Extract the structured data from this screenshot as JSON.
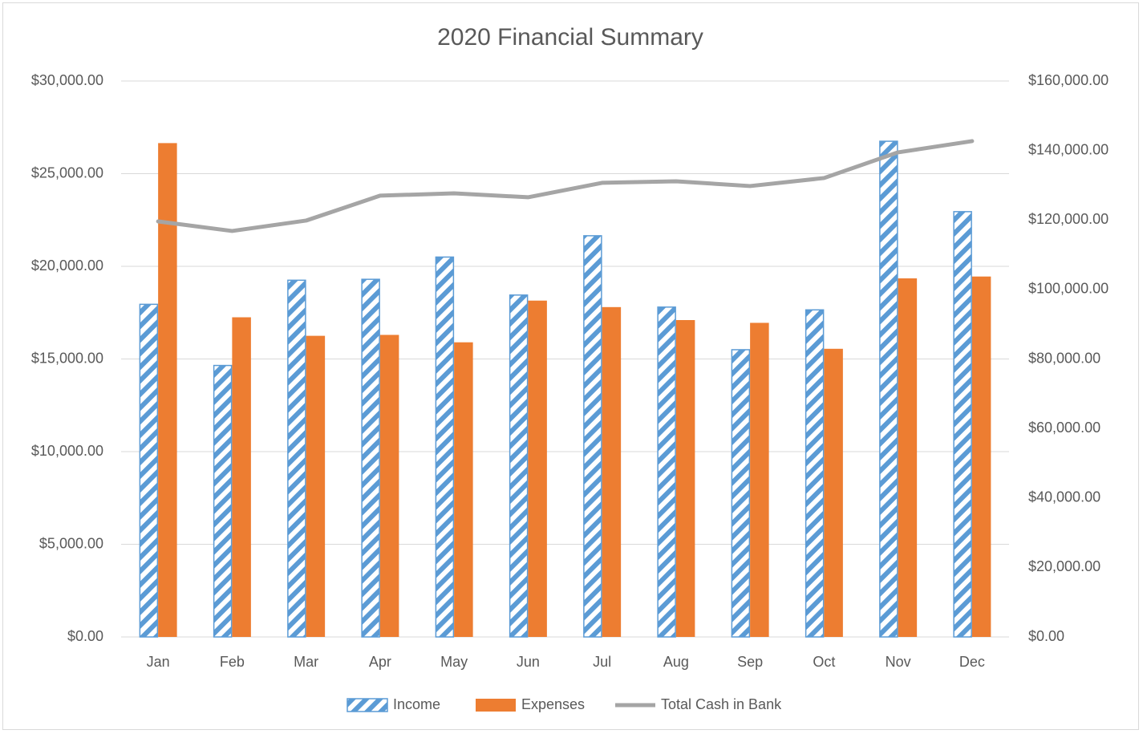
{
  "chart_data": {
    "type": "bar",
    "title": "2020 Financial Summary",
    "categories": [
      "Jan",
      "Feb",
      "Mar",
      "Apr",
      "May",
      "Jun",
      "Jul",
      "Aug",
      "Sep",
      "Oct",
      "Nov",
      "Dec"
    ],
    "series": [
      {
        "name": "Income",
        "type": "bar",
        "color": "#5b9bd5",
        "pattern": "diagonal-stripes",
        "values": [
          17950,
          14650,
          19250,
          19300,
          20500,
          18450,
          21650,
          17800,
          15500,
          17650,
          26750,
          22950
        ]
      },
      {
        "name": "Expenses",
        "type": "bar",
        "color": "#ed7d31",
        "values": [
          26650,
          17250,
          16250,
          16300,
          15900,
          18150,
          17800,
          17100,
          16950,
          15550,
          19350,
          19450
        ]
      },
      {
        "name": "Total Cash in Bank",
        "type": "line",
        "axis": "y2",
        "color": "#a5a5a5",
        "values": [
          119600,
          116840,
          119840,
          127000,
          127690,
          126540,
          130700,
          131150,
          129770,
          132080,
          139470,
          142700
        ]
      }
    ],
    "ylim": [
      0,
      30000
    ],
    "yticks": [
      {
        "value": 0,
        "label": "$0.00"
      },
      {
        "value": 5000,
        "label": "$5,000.00"
      },
      {
        "value": 10000,
        "label": "$10,000.00"
      },
      {
        "value": 15000,
        "label": "$15,000.00"
      },
      {
        "value": 20000,
        "label": "$20,000.00"
      },
      {
        "value": 25000,
        "label": "$25,000.00"
      },
      {
        "value": 30000,
        "label": "$30,000.00"
      }
    ],
    "y2lim": [
      0,
      160000
    ],
    "y2ticks": [
      {
        "value": 0,
        "label": "$0.00"
      },
      {
        "value": 20000,
        "label": "$20,000.00"
      },
      {
        "value": 40000,
        "label": "$40,000.00"
      },
      {
        "value": 60000,
        "label": "$60,000.00"
      },
      {
        "value": 80000,
        "label": "$80,000.00"
      },
      {
        "value": 100000,
        "label": "$100,000.00"
      },
      {
        "value": 120000,
        "label": "$120,000.00"
      },
      {
        "value": 140000,
        "label": "$140,000.00"
      },
      {
        "value": 160000,
        "label": "$160,000.00"
      }
    ],
    "grid": true,
    "legend": "bottom"
  }
}
